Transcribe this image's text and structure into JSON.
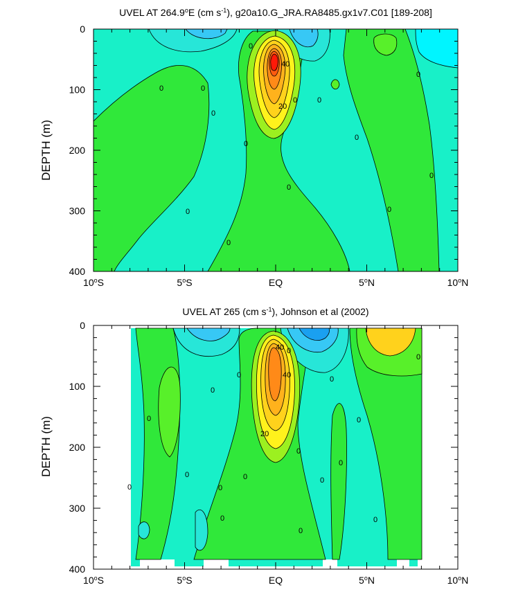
{
  "chart_data": [
    {
      "type": "heatmap",
      "title_main": "UVEL AT 264.9",
      "title_deg": "o",
      "title_mid": "E (cm s",
      "title_sup": "-1",
      "title_tail": "), g20a10.G_JRA.RA8485.gx1v7.C01 [189-208]",
      "ylabel": "DEPTH (m)",
      "x_ticks": [
        {
          "num": "10",
          "deg": "o",
          "hemi": "S"
        },
        {
          "num": "5",
          "deg": "o",
          "hemi": "S"
        },
        {
          "num": "EQ",
          "deg": "",
          "hemi": ""
        },
        {
          "num": "5",
          "deg": "o",
          "hemi": "N"
        },
        {
          "num": "10",
          "deg": "o",
          "hemi": "N"
        }
      ],
      "y_ticks": [
        "0",
        "100",
        "200",
        "300",
        "400"
      ],
      "contour_labels": [
        "0",
        "0",
        "0",
        "0",
        "0",
        "0",
        "0",
        "0",
        "0",
        "0",
        "0",
        "0",
        "0",
        "0",
        "20",
        "40"
      ],
      "xlim": [
        -10,
        10
      ],
      "ylim": [
        400,
        0
      ]
    },
    {
      "type": "heatmap",
      "title_main": "UVEL AT 265 (cm s",
      "title_sup": "-1",
      "title_tail": "), Johnson et al (2002)",
      "ylabel": "DEPTH (m)",
      "x_ticks": [
        {
          "num": "10",
          "deg": "o",
          "hemi": "S"
        },
        {
          "num": "5",
          "deg": "o",
          "hemi": "S"
        },
        {
          "num": "EQ",
          "deg": "",
          "hemi": ""
        },
        {
          "num": "5",
          "deg": "o",
          "hemi": "N"
        },
        {
          "num": "10",
          "deg": "o",
          "hemi": "N"
        }
      ],
      "y_ticks": [
        "0",
        "100",
        "200",
        "300",
        "400"
      ],
      "contour_labels": [
        "0",
        "0",
        "0",
        "0",
        "0",
        "0",
        "0",
        "0",
        "0",
        "0",
        "0",
        "0",
        "0",
        "0",
        "0",
        "0",
        "0",
        "20",
        "40",
        "40"
      ],
      "xlim": [
        -10,
        10
      ],
      "ylim": [
        400,
        0
      ]
    }
  ],
  "colors": {
    "blue_dark": "#1aa0f0",
    "blue_mid": "#37c8f5",
    "cyan": "#27e6d8",
    "aqua": "#00f5ff",
    "teal": "#18f0c8",
    "green": "#30e83a",
    "green_light": "#58f02a",
    "chartreuse": "#9cf020",
    "yellow": "#fff21c",
    "gold": "#ffd21c",
    "orange_light": "#ffb21c",
    "orange": "#ff8a18",
    "red_orange": "#ff5a10",
    "red": "#ff1a08"
  }
}
